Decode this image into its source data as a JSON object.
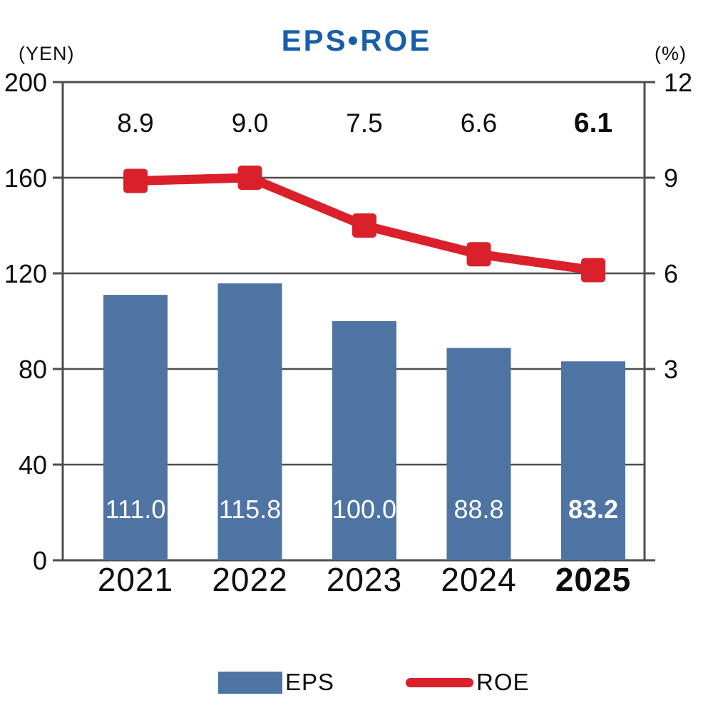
{
  "chart_data": {
    "type": "bar+line",
    "title": "EPS・ROE",
    "categories": [
      "2021",
      "2022",
      "2023",
      "2024",
      "2025"
    ],
    "highlight_last_category": true,
    "grid": true,
    "legend_position": "bottom",
    "left_axis": {
      "unit": "(YEN)",
      "min": 0,
      "max": 200,
      "tick_values": [
        200,
        160,
        120,
        80,
        40,
        0
      ],
      "tick_labels": [
        "200",
        "160",
        "120",
        "80",
        "40",
        "0"
      ]
    },
    "right_axis": {
      "unit": "(%)",
      "tick_values": [
        12,
        9,
        6,
        3
      ],
      "tick_labels": [
        "12",
        "9",
        "6",
        "3"
      ],
      "aligned_left_values": [
        200,
        160,
        120,
        80
      ]
    },
    "series": [
      {
        "name": "EPS",
        "type": "bar",
        "axis": "left",
        "values": [
          111.0,
          115.8,
          100.0,
          88.8,
          83.2
        ],
        "value_labels": [
          "111.0",
          "115.8",
          "100.0",
          "88.8",
          "83.2"
        ],
        "color": "#4e74a4",
        "value_label_color": "#ffffff"
      },
      {
        "name": "ROE",
        "type": "line",
        "axis": "right",
        "marker": "square",
        "values": [
          8.9,
          9.0,
          7.5,
          6.6,
          6.1
        ],
        "value_labels": [
          "8.9",
          "9.0",
          "7.5",
          "6.6",
          "6.1"
        ],
        "color": "#da202a",
        "value_label_color": "#0d0d0d"
      }
    ],
    "colors": {
      "title": "#195fa8",
      "axis": "#4d4d4d",
      "text": "#0d0d0d"
    }
  }
}
